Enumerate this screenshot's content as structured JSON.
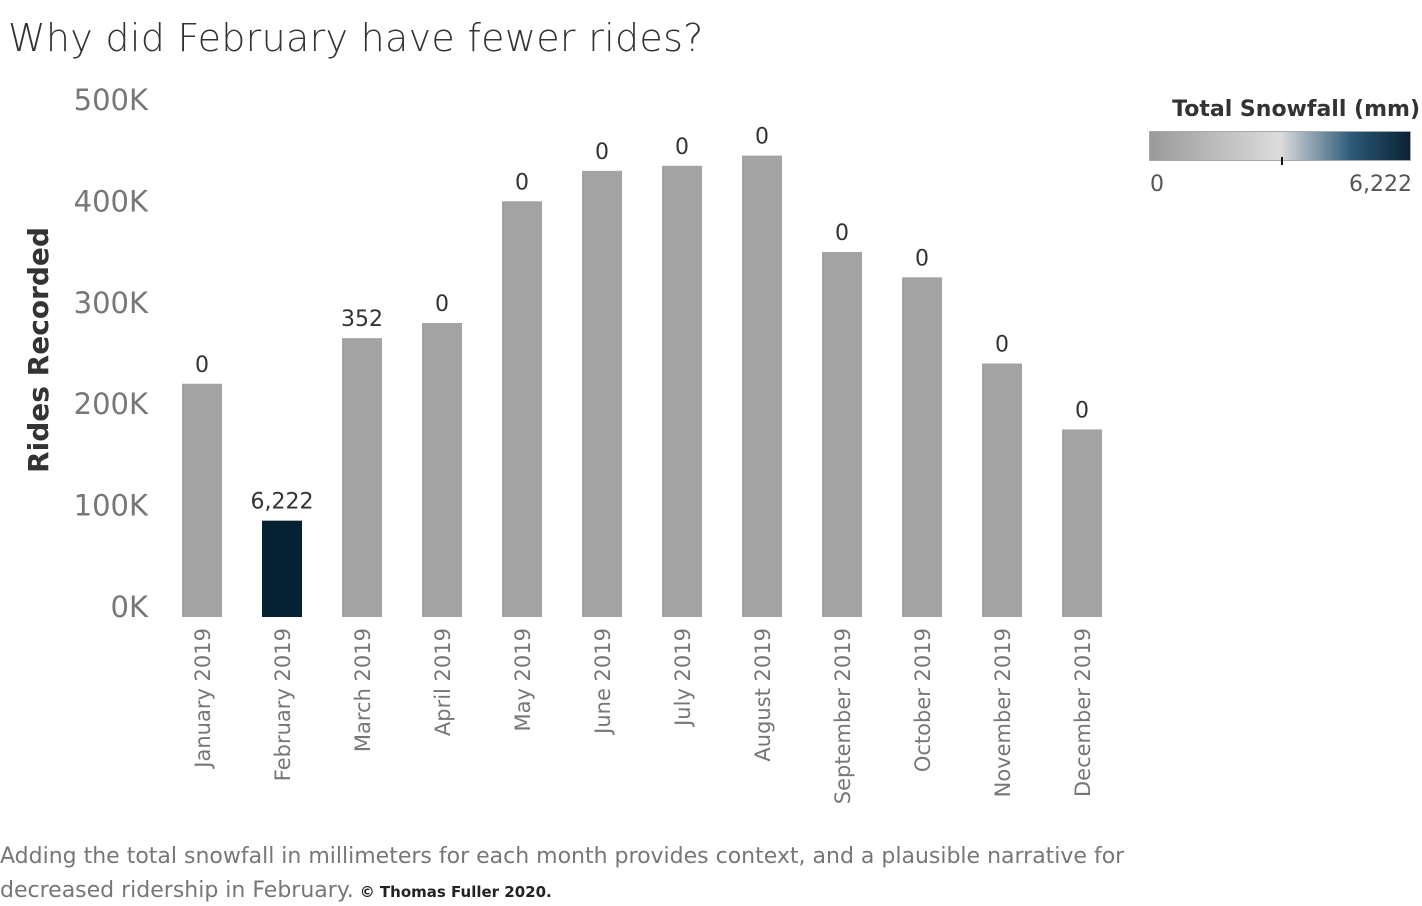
{
  "title": "Why did February have fewer rides?",
  "caption": {
    "text": "Adding the total snowfall in millimeters for each month provides context, and a plausible narrative for decreased ridership in February.",
    "copyright": "© Thomas Fuller 2020."
  },
  "legend": {
    "title": "Total Snowfall (mm)",
    "min_label": "0",
    "max_label": "6,222",
    "min_value": 0,
    "max_value": 6222,
    "gradient_colors": [
      "#9a9a9a",
      "#dcdcdc",
      "#2a5877",
      "#0b2233"
    ]
  },
  "colors": {
    "bar_default": "#a3a3a3",
    "bar_highlight": "#062232",
    "axis_text": "#777777",
    "label_text": "#333333"
  },
  "chart_data": {
    "type": "bar",
    "title": "Why did February have fewer rides?",
    "xlabel": "",
    "ylabel": "Rides Recorded",
    "ylim": [
      0,
      500000
    ],
    "yticks": [
      0,
      100000,
      200000,
      300000,
      400000,
      500000
    ],
    "ytick_labels": [
      "0K",
      "100K",
      "200K",
      "300K",
      "400K",
      "500K"
    ],
    "categories": [
      "January 2019",
      "February 2019",
      "March 2019",
      "April 2019",
      "May 2019",
      "June 2019",
      "July 2019",
      "August 2019",
      "September 2019",
      "October 2019",
      "November 2019",
      "December 2019"
    ],
    "values": [
      230000,
      95000,
      275000,
      290000,
      410000,
      440000,
      445000,
      455000,
      360000,
      335000,
      250000,
      185000
    ],
    "snowfall_mm": [
      0,
      6222,
      352,
      0,
      0,
      0,
      0,
      0,
      0,
      0,
      0,
      0
    ],
    "data_labels": [
      "0",
      "6,222",
      "352",
      "0",
      "0",
      "0",
      "0",
      "0",
      "0",
      "0",
      "0",
      "0"
    ],
    "grid": false,
    "legend_position": "top-right"
  }
}
